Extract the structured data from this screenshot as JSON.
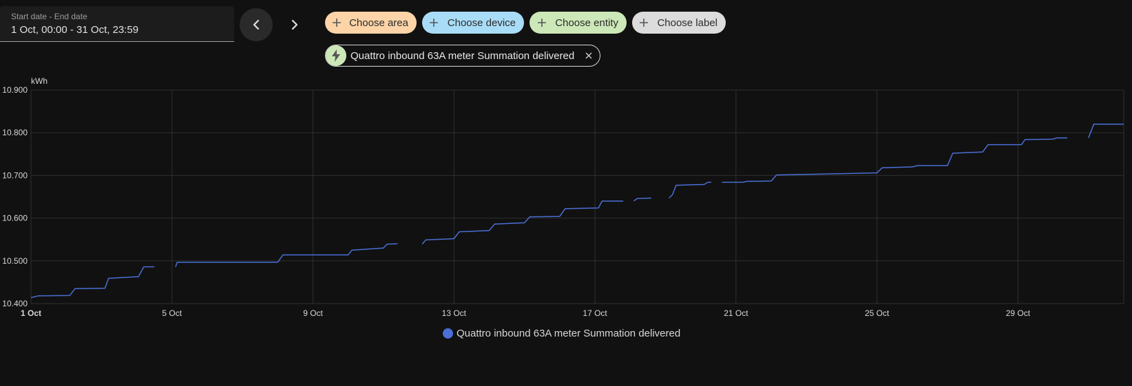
{
  "date_range": {
    "label": "Start date - End date",
    "value": "1 Oct, 00:00 - 31 Oct, 23:59"
  },
  "navigation": {
    "prev_icon": "chevron-left-icon",
    "next_icon": "chevron-right-icon"
  },
  "target_picker": {
    "area_label": "Choose area",
    "device_label": "Choose device",
    "entity_label": "Choose entity",
    "label_label": "Choose label",
    "add_icon": "plus-icon",
    "colors": {
      "area": "#fcd4a7",
      "device": "#a9ddf7",
      "entity": "#cde8b8",
      "label": "#dcdcdc"
    }
  },
  "selected_entity": {
    "name": "Quattro inbound 63A meter Summation delivered",
    "icon": "lightning-bolt-icon",
    "remove_icon": "close-icon"
  },
  "chart_data": {
    "type": "line",
    "ylabel": "kWh",
    "ylim": [
      10.4,
      10.9
    ],
    "xlim": [
      "2024-10-01",
      "2024-10-32"
    ],
    "y_ticks": [
      "10.400",
      "10.500",
      "10.600",
      "10.700",
      "10.800",
      "10.900"
    ],
    "x_ticks": [
      {
        "label": "1 Oct",
        "day": 1,
        "bold": true
      },
      {
        "label": "5 Oct",
        "day": 5
      },
      {
        "label": "9 Oct",
        "day": 9
      },
      {
        "label": "13 Oct",
        "day": 13
      },
      {
        "label": "17 Oct",
        "day": 17
      },
      {
        "label": "21 Oct",
        "day": 21
      },
      {
        "label": "25 Oct",
        "day": 25
      },
      {
        "label": "29 Oct",
        "day": 29
      }
    ],
    "grid": true,
    "legend_position": "bottom",
    "series": [
      {
        "name": "Quattro inbound 63A meter Summation delivered",
        "color": "#4a6fd6",
        "segments": [
          [
            [
              1.0,
              10.414
            ],
            [
              1.2,
              10.418
            ],
            [
              2.1,
              10.419
            ],
            [
              2.25,
              10.435
            ],
            [
              3.1,
              10.436
            ],
            [
              3.2,
              10.459
            ],
            [
              4.05,
              10.463
            ],
            [
              4.2,
              10.486
            ],
            [
              4.5,
              10.486
            ]
          ],
          [
            [
              5.1,
              10.486
            ],
            [
              5.15,
              10.497
            ],
            [
              8.0,
              10.497
            ],
            [
              8.15,
              10.514
            ],
            [
              10.0,
              10.514
            ],
            [
              10.1,
              10.525
            ],
            [
              11.0,
              10.53
            ],
            [
              11.1,
              10.539
            ],
            [
              11.4,
              10.54
            ]
          ],
          [
            [
              12.1,
              10.539
            ],
            [
              12.2,
              10.549
            ],
            [
              13.0,
              10.552
            ],
            [
              13.15,
              10.568
            ],
            [
              14.0,
              10.571
            ],
            [
              14.15,
              10.586
            ],
            [
              15.0,
              10.589
            ],
            [
              15.15,
              10.603
            ],
            [
              16.0,
              10.604
            ],
            [
              16.15,
              10.622
            ],
            [
              17.1,
              10.624
            ],
            [
              17.2,
              10.64
            ],
            [
              17.8,
              10.64
            ]
          ],
          [
            [
              18.1,
              10.64
            ],
            [
              18.2,
              10.646
            ],
            [
              18.6,
              10.647
            ]
          ],
          [
            [
              19.1,
              10.647
            ],
            [
              19.2,
              10.655
            ],
            [
              19.3,
              10.677
            ],
            [
              20.1,
              10.679
            ],
            [
              20.2,
              10.684
            ],
            [
              20.3,
              10.684
            ]
          ],
          [
            [
              20.6,
              10.684
            ],
            [
              21.2,
              10.684
            ],
            [
              21.3,
              10.686
            ],
            [
              22.0,
              10.687
            ],
            [
              22.15,
              10.701
            ],
            [
              25.0,
              10.706
            ],
            [
              25.15,
              10.718
            ],
            [
              26.0,
              10.72
            ],
            [
              26.15,
              10.723
            ],
            [
              27.0,
              10.723
            ],
            [
              27.15,
              10.752
            ],
            [
              28.0,
              10.755
            ],
            [
              28.15,
              10.772
            ],
            [
              29.1,
              10.772
            ],
            [
              29.2,
              10.784
            ],
            [
              30.0,
              10.785
            ],
            [
              30.1,
              10.788
            ],
            [
              30.4,
              10.788
            ]
          ],
          [
            [
              31.0,
              10.788
            ],
            [
              31.15,
              10.82
            ],
            [
              32.0,
              10.82
            ]
          ]
        ]
      }
    ]
  }
}
